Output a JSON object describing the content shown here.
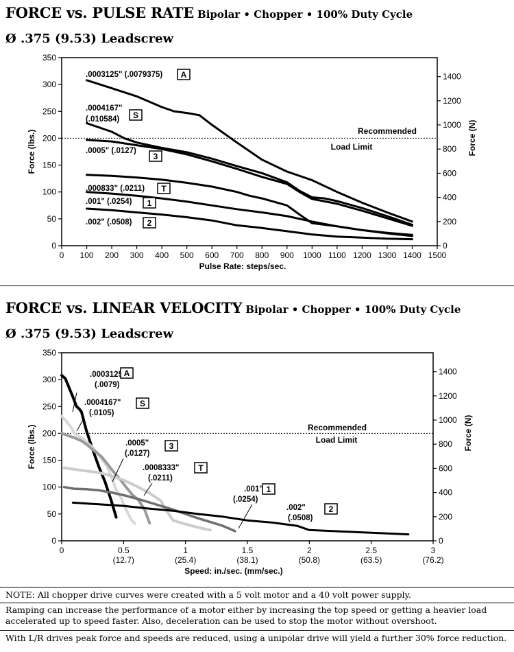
{
  "top_section": {
    "title": "FORCE vs. PULSE RATE",
    "title_sub": "Bipolar • Chopper • 100% Duty Cycle",
    "subtitle": "Ø .375 (9.53) Leadscrew"
  },
  "bottom_section": {
    "title": "FORCE vs. LINEAR VELOCITY",
    "title_sub": "Bipolar • Chopper • 100% Duty Cycle",
    "subtitle": "Ø .375 (9.53) Leadscrew"
  },
  "notes": {
    "note1": "NOTE: All chopper drive curves were created with a 5 volt motor and a 40 volt power supply.",
    "note2": "Ramping can increase the performance of a motor either by increasing the top speed or getting a heavier load accelerated up to speed faster.  Also, deceleration can be used to stop the motor without overshoot.",
    "note3": "With L/R drives peak force and speeds are reduced, using a unipolar drive will yield a further 30% force reduction."
  },
  "chart_data": [
    {
      "type": "line",
      "title": "FORCE vs. PULSE RATE",
      "xlabel": "Pulse Rate:  steps/sec.",
      "ylabel": "Force (lbs.)",
      "y2label": "Force (N)",
      "xlim": [
        0,
        1500
      ],
      "ylim": [
        0,
        350
      ],
      "y2lim": [
        0,
        1557
      ],
      "xticks": [
        "0",
        "100",
        "200",
        "300",
        "400",
        "500",
        "600",
        "700",
        "800",
        "900",
        "1000",
        "1100",
        "1200",
        "1300",
        "1400",
        "1500"
      ],
      "yticks": [
        "0",
        "50",
        "100",
        "150",
        "200",
        "250",
        "300",
        "350"
      ],
      "y2ticks": [
        "0",
        "200",
        "400",
        "600",
        "800",
        "1000",
        "1200",
        "1400"
      ],
      "reference_line": {
        "y": 200,
        "label_line1": "Recommended",
        "label_line2": "Load Limit"
      },
      "series": [
        {
          "name": "A",
          "label": ".0003125\" (.0079375)",
          "color": "#000000",
          "x": [
            100,
            200,
            300,
            400,
            450,
            500,
            550,
            600,
            700,
            800,
            900,
            1000,
            1100,
            1200,
            1300,
            1400
          ],
          "y": [
            308,
            293,
            278,
            258,
            250,
            247,
            243,
            225,
            192,
            160,
            138,
            122,
            100,
            80,
            62,
            45
          ]
        },
        {
          "name": "S",
          "label_line1": ".0004167\"",
          "label_line2": "(.010584)",
          "color": "#000000",
          "x": [
            100,
            200,
            250,
            300,
            400,
            500,
            600,
            700,
            800,
            900,
            950,
            1000,
            1050,
            1100,
            1200,
            1300,
            1400
          ],
          "y": [
            228,
            212,
            200,
            192,
            182,
            174,
            162,
            148,
            135,
            118,
            102,
            90,
            88,
            83,
            70,
            55,
            39
          ]
        },
        {
          "name": "3",
          "label": ".0005\" (.0127)",
          "color": "#000000",
          "x": [
            100,
            200,
            300,
            400,
            500,
            600,
            700,
            800,
            900,
            950,
            1000,
            1100,
            1200,
            1300,
            1400
          ],
          "y": [
            197,
            194,
            187,
            180,
            170,
            157,
            143,
            128,
            115,
            100,
            87,
            78,
            65,
            51,
            37
          ]
        },
        {
          "name": "T",
          "label": ".000833\" (.0211)",
          "color": "#000000",
          "x": [
            100,
            200,
            300,
            400,
            500,
            600,
            700,
            750,
            800,
            900,
            950,
            1000,
            1100,
            1200,
            1300,
            1400
          ],
          "y": [
            132,
            130,
            127,
            123,
            117,
            110,
            100,
            93,
            88,
            75,
            58,
            42,
            36,
            29,
            23,
            18
          ]
        },
        {
          "name": "1",
          "label": ".001\" (.0254)",
          "color": "#000000",
          "x": [
            100,
            200,
            300,
            400,
            500,
            600,
            700,
            800,
            900,
            1000,
            1100,
            1200,
            1300,
            1400
          ],
          "y": [
            100,
            97,
            93,
            88,
            82,
            75,
            68,
            62,
            55,
            45,
            36,
            29,
            24,
            20
          ]
        },
        {
          "name": "2",
          "label": ".002\" (.0508)",
          "color": "#000000",
          "x": [
            100,
            200,
            300,
            400,
            500,
            600,
            700,
            800,
            900,
            1000,
            1100,
            1200,
            1300,
            1400
          ],
          "y": [
            69,
            66,
            62,
            58,
            53,
            47,
            38,
            33,
            27,
            21,
            17,
            15,
            13,
            12
          ]
        }
      ]
    },
    {
      "type": "line",
      "title": "FORCE vs. LINEAR VELOCITY",
      "xlabel": "Speed:  in./sec. (mm/sec.)",
      "ylabel": "Force (lbs.)",
      "y2label": "Force (N)",
      "xlim": [
        0,
        3
      ],
      "ylim": [
        0,
        350
      ],
      "y2lim": [
        0,
        1557
      ],
      "xticks": [
        {
          "v": 0,
          "l1": "0",
          "l2": ""
        },
        {
          "v": 0.5,
          "l1": "0.5",
          "l2": "(12.7)"
        },
        {
          "v": 1,
          "l1": "1",
          "l2": "(25.4)"
        },
        {
          "v": 1.5,
          "l1": "1.5",
          "l2": "(38.1)"
        },
        {
          "v": 2,
          "l1": "2",
          "l2": "(50.8)"
        },
        {
          "v": 2.5,
          "l1": "2.5",
          "l2": "(63.5)"
        },
        {
          "v": 3,
          "l1": "3",
          "l2": "(76.2)"
        }
      ],
      "yticks": [
        "0",
        "50",
        "100",
        "150",
        "200",
        "250",
        "300",
        "350"
      ],
      "y2ticks": [
        "0",
        "200",
        "400",
        "600",
        "800",
        "1000",
        "1200",
        "1400"
      ],
      "reference_line": {
        "y": 200,
        "label_line1": "Recommended",
        "label_line2": "Load Limit"
      },
      "series": [
        {
          "name": "A",
          "label_line1": ".0003125\"",
          "label_line2": "(.0079)",
          "color": "#000000",
          "width": 4,
          "x": [
            0.0,
            0.03,
            0.06,
            0.09,
            0.12,
            0.14,
            0.16,
            0.2,
            0.25,
            0.3,
            0.35,
            0.4,
            0.44
          ],
          "y": [
            308,
            302,
            285,
            268,
            250,
            246,
            240,
            205,
            170,
            138,
            110,
            75,
            44
          ]
        },
        {
          "name": "S",
          "label_line1": ".0004167\"",
          "label_line2": "(.0105)",
          "color": "#d8d8d8",
          "width": 4,
          "x": [
            0.0,
            0.04,
            0.08,
            0.1,
            0.13,
            0.17,
            0.21,
            0.25,
            0.29,
            0.33,
            0.37,
            0.4,
            0.44,
            0.48,
            0.52,
            0.56,
            0.59
          ],
          "y": [
            232,
            222,
            210,
            200,
            195,
            190,
            182,
            174,
            164,
            150,
            137,
            120,
            95,
            80,
            58,
            40,
            32
          ]
        },
        {
          "name": "3",
          "label_line1": ".0005\"",
          "label_line2": "(.0127)",
          "color": "#9a9a9a",
          "width": 4,
          "x": [
            0.0,
            0.05,
            0.1,
            0.16,
            0.21,
            0.26,
            0.32,
            0.37,
            0.42,
            0.47,
            0.52,
            0.57,
            0.62,
            0.67,
            0.71
          ],
          "y": [
            200,
            196,
            192,
            186,
            178,
            168,
            157,
            143,
            128,
            115,
            100,
            86,
            76,
            58,
            33
          ]
        },
        {
          "name": "T",
          "label_line1": ".0008333\"",
          "label_line2": "(.0211)",
          "color": "#cccccc",
          "width": 4,
          "x": [
            0.02,
            0.1,
            0.2,
            0.3,
            0.4,
            0.5,
            0.6,
            0.7,
            0.8,
            0.85,
            0.9,
            1.0,
            1.1,
            1.2
          ],
          "y": [
            136,
            133,
            130,
            127,
            121,
            113,
            102,
            90,
            75,
            55,
            38,
            31,
            25,
            20
          ]
        },
        {
          "name": "1",
          "label_line1": ".001\"",
          "label_line2": "(.0254)",
          "color": "#6e6e6e",
          "width": 3.5,
          "x": [
            0.02,
            0.1,
            0.2,
            0.3,
            0.4,
            0.5,
            0.6,
            0.7,
            0.8,
            0.9,
            1.0,
            1.1,
            1.2,
            1.3,
            1.4
          ],
          "y": [
            100,
            97,
            96,
            94,
            90,
            85,
            79,
            72,
            65,
            58,
            50,
            42,
            35,
            28,
            18
          ]
        },
        {
          "name": "2",
          "label_line1": ".002\"",
          "label_line2": "(.0508)",
          "color": "#000000",
          "width": 3,
          "x": [
            0.09,
            0.3,
            0.5,
            0.7,
            0.9,
            1.1,
            1.3,
            1.5,
            1.7,
            1.9,
            2.0,
            2.2,
            2.4,
            2.6,
            2.8
          ],
          "y": [
            71,
            68,
            65,
            60,
            56,
            50,
            45,
            38,
            34,
            28,
            20,
            18,
            16,
            14,
            12
          ]
        }
      ]
    }
  ]
}
